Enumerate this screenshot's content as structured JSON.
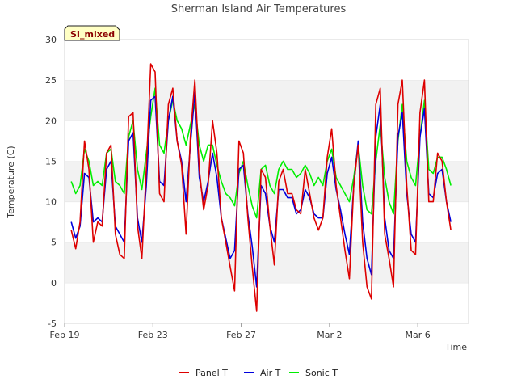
{
  "chart_data": {
    "type": "line",
    "title": "Sherman Island Air Temperatures",
    "badge": "SI_mixed",
    "xlabel": "Time",
    "ylabel": "Temperature (C)",
    "ylim": [
      -5,
      30
    ],
    "xlim": [
      0,
      18.3
    ],
    "yticks": [
      -5,
      0,
      5,
      10,
      15,
      20,
      25,
      30
    ],
    "xticks": [
      {
        "label": "Feb 19",
        "day": 0
      },
      {
        "label": "Feb 23",
        "day": 4
      },
      {
        "label": "Feb 27",
        "day": 8
      },
      {
        "label": "Mar 2",
        "day": 12
      },
      {
        "label": "Mar 6",
        "day": 16
      }
    ],
    "grid": "horizontal bands",
    "legend_position": "bottom",
    "series": [
      {
        "name": "Panel T",
        "color": "#dd0000",
        "points": [
          [
            0.3,
            6.5
          ],
          [
            0.5,
            4.2
          ],
          [
            0.7,
            7.5
          ],
          [
            0.9,
            17.5
          ],
          [
            1.1,
            14
          ],
          [
            1.3,
            5
          ],
          [
            1.5,
            7.5
          ],
          [
            1.7,
            7
          ],
          [
            1.9,
            16
          ],
          [
            2.1,
            17
          ],
          [
            2.3,
            6
          ],
          [
            2.5,
            3.5
          ],
          [
            2.7,
            3
          ],
          [
            2.9,
            20.5
          ],
          [
            3.1,
            21
          ],
          [
            3.3,
            7
          ],
          [
            3.5,
            3
          ],
          [
            3.7,
            14
          ],
          [
            3.9,
            27
          ],
          [
            4.1,
            26
          ],
          [
            4.3,
            11
          ],
          [
            4.5,
            10
          ],
          [
            4.7,
            22
          ],
          [
            4.9,
            24
          ],
          [
            5.1,
            17.5
          ],
          [
            5.3,
            14.5
          ],
          [
            5.5,
            6
          ],
          [
            5.7,
            18
          ],
          [
            5.9,
            25
          ],
          [
            6.1,
            14
          ],
          [
            6.3,
            9
          ],
          [
            6.5,
            12
          ],
          [
            6.7,
            20
          ],
          [
            6.9,
            16
          ],
          [
            7.1,
            8
          ],
          [
            7.3,
            5
          ],
          [
            7.5,
            2
          ],
          [
            7.7,
            -1
          ],
          [
            7.9,
            17.5
          ],
          [
            8.1,
            16
          ],
          [
            8.3,
            8
          ],
          [
            8.5,
            2
          ],
          [
            8.7,
            -3.5
          ],
          [
            8.9,
            14
          ],
          [
            9.1,
            13
          ],
          [
            9.3,
            7
          ],
          [
            9.5,
            2.2
          ],
          [
            9.7,
            12.5
          ],
          [
            9.9,
            14
          ],
          [
            10.1,
            11
          ],
          [
            10.3,
            11
          ],
          [
            10.5,
            9
          ],
          [
            10.7,
            8.5
          ],
          [
            10.9,
            14
          ],
          [
            11.1,
            11
          ],
          [
            11.3,
            8
          ],
          [
            11.5,
            6.5
          ],
          [
            11.7,
            8
          ],
          [
            11.9,
            15.5
          ],
          [
            12.1,
            19
          ],
          [
            12.3,
            12
          ],
          [
            12.5,
            8
          ],
          [
            12.7,
            4
          ],
          [
            12.9,
            0.5
          ],
          [
            13.1,
            12
          ],
          [
            13.3,
            17
          ],
          [
            13.5,
            5
          ],
          [
            13.7,
            -0.5
          ],
          [
            13.9,
            -2
          ],
          [
            14.1,
            22
          ],
          [
            14.3,
            24
          ],
          [
            14.5,
            6
          ],
          [
            14.7,
            3
          ],
          [
            14.9,
            -0.5
          ],
          [
            15.1,
            22
          ],
          [
            15.3,
            25
          ],
          [
            15.5,
            12
          ],
          [
            15.7,
            4
          ],
          [
            15.9,
            3.5
          ],
          [
            16.1,
            21
          ],
          [
            16.3,
            25
          ],
          [
            16.5,
            10
          ],
          [
            16.7,
            10
          ],
          [
            16.9,
            16
          ],
          [
            17.1,
            15
          ],
          [
            17.3,
            10
          ],
          [
            17.5,
            6.5
          ]
        ]
      },
      {
        "name": "Air T",
        "color": "#0000dd",
        "points": [
          [
            0.3,
            7.5
          ],
          [
            0.5,
            5.5
          ],
          [
            0.7,
            7
          ],
          [
            0.9,
            13.5
          ],
          [
            1.1,
            13
          ],
          [
            1.3,
            7.5
          ],
          [
            1.5,
            8
          ],
          [
            1.7,
            7.5
          ],
          [
            1.9,
            14
          ],
          [
            2.1,
            15
          ],
          [
            2.3,
            7
          ],
          [
            2.5,
            6
          ],
          [
            2.7,
            5
          ],
          [
            2.9,
            17.5
          ],
          [
            3.1,
            18.5
          ],
          [
            3.3,
            8
          ],
          [
            3.5,
            5
          ],
          [
            3.7,
            12
          ],
          [
            3.9,
            22.5
          ],
          [
            4.1,
            23
          ],
          [
            4.3,
            12.5
          ],
          [
            4.5,
            12
          ],
          [
            4.7,
            20
          ],
          [
            4.9,
            23
          ],
          [
            5.1,
            17.5
          ],
          [
            5.3,
            15
          ],
          [
            5.5,
            10
          ],
          [
            5.7,
            17
          ],
          [
            5.9,
            23.5
          ],
          [
            6.1,
            13
          ],
          [
            6.3,
            10
          ],
          [
            6.5,
            12.5
          ],
          [
            6.7,
            16
          ],
          [
            6.9,
            13
          ],
          [
            7.1,
            8
          ],
          [
            7.3,
            5.5
          ],
          [
            7.5,
            3
          ],
          [
            7.7,
            4
          ],
          [
            7.9,
            14
          ],
          [
            8.1,
            14.5
          ],
          [
            8.3,
            8.5
          ],
          [
            8.5,
            4.5
          ],
          [
            8.7,
            -0.5
          ],
          [
            8.9,
            12
          ],
          [
            9.1,
            11
          ],
          [
            9.3,
            7
          ],
          [
            9.5,
            5
          ],
          [
            9.7,
            11.5
          ],
          [
            9.9,
            11.5
          ],
          [
            10.1,
            10.5
          ],
          [
            10.3,
            10.5
          ],
          [
            10.5,
            8.5
          ],
          [
            10.7,
            9
          ],
          [
            10.9,
            11.5
          ],
          [
            11.1,
            10.5
          ],
          [
            11.3,
            8.5
          ],
          [
            11.5,
            8
          ],
          [
            11.7,
            8
          ],
          [
            11.9,
            13.5
          ],
          [
            12.1,
            15.5
          ],
          [
            12.3,
            11.5
          ],
          [
            12.5,
            9
          ],
          [
            12.7,
            6
          ],
          [
            12.9,
            3.5
          ],
          [
            13.1,
            12
          ],
          [
            13.3,
            17.5
          ],
          [
            13.5,
            7.5
          ],
          [
            13.7,
            3
          ],
          [
            13.9,
            1
          ],
          [
            14.1,
            18
          ],
          [
            14.3,
            22
          ],
          [
            14.5,
            8
          ],
          [
            14.7,
            4
          ],
          [
            14.9,
            3
          ],
          [
            15.1,
            18
          ],
          [
            15.3,
            21
          ],
          [
            15.5,
            11
          ],
          [
            15.7,
            6
          ],
          [
            15.9,
            5
          ],
          [
            16.1,
            18
          ],
          [
            16.3,
            21.5
          ],
          [
            16.5,
            11
          ],
          [
            16.7,
            10.5
          ],
          [
            16.9,
            13.5
          ],
          [
            17.1,
            14
          ],
          [
            17.3,
            10
          ],
          [
            17.5,
            7.5
          ]
        ]
      },
      {
        "name": "Sonic T",
        "color": "#00ee00",
        "points": [
          [
            0.3,
            12.5
          ],
          [
            0.5,
            11
          ],
          [
            0.7,
            12
          ],
          [
            0.9,
            16.5
          ],
          [
            1.1,
            15
          ],
          [
            1.3,
            12
          ],
          [
            1.5,
            12.5
          ],
          [
            1.7,
            12
          ],
          [
            1.9,
            16
          ],
          [
            2.1,
            16.5
          ],
          [
            2.3,
            12.5
          ],
          [
            2.5,
            12
          ],
          [
            2.7,
            11
          ],
          [
            2.9,
            18
          ],
          [
            3.1,
            20
          ],
          [
            3.3,
            14
          ],
          [
            3.5,
            11.5
          ],
          [
            3.7,
            16
          ],
          [
            3.9,
            20.5
          ],
          [
            4.1,
            24
          ],
          [
            4.3,
            17
          ],
          [
            4.5,
            16
          ],
          [
            4.7,
            20
          ],
          [
            4.9,
            22.5
          ],
          [
            5.1,
            20
          ],
          [
            5.3,
            19
          ],
          [
            5.5,
            17
          ],
          [
            5.7,
            19.5
          ],
          [
            5.9,
            22
          ],
          [
            6.1,
            17
          ],
          [
            6.3,
            15
          ],
          [
            6.5,
            17
          ],
          [
            6.7,
            17
          ],
          [
            6.9,
            14.5
          ],
          [
            7.1,
            12.5
          ],
          [
            7.3,
            11
          ],
          [
            7.5,
            10.5
          ],
          [
            7.7,
            9.5
          ],
          [
            7.9,
            13.5
          ],
          [
            8.1,
            15
          ],
          [
            8.3,
            12
          ],
          [
            8.5,
            9.5
          ],
          [
            8.7,
            8
          ],
          [
            8.9,
            14
          ],
          [
            9.1,
            14.5
          ],
          [
            9.3,
            12
          ],
          [
            9.5,
            11
          ],
          [
            9.7,
            14
          ],
          [
            9.9,
            15
          ],
          [
            10.1,
            14
          ],
          [
            10.3,
            14
          ],
          [
            10.5,
            13
          ],
          [
            10.7,
            13.5
          ],
          [
            10.9,
            14.5
          ],
          [
            11.1,
            13.5
          ],
          [
            11.3,
            12
          ],
          [
            11.5,
            13
          ],
          [
            11.7,
            12
          ],
          [
            11.9,
            15
          ],
          [
            12.1,
            16.5
          ],
          [
            12.3,
            13
          ],
          [
            12.5,
            12
          ],
          [
            12.7,
            11
          ],
          [
            12.9,
            10
          ],
          [
            13.1,
            13
          ],
          [
            13.3,
            17
          ],
          [
            13.5,
            12
          ],
          [
            13.7,
            9
          ],
          [
            13.9,
            8.5
          ],
          [
            14.1,
            15
          ],
          [
            14.3,
            19.5
          ],
          [
            14.5,
            13
          ],
          [
            14.7,
            10
          ],
          [
            14.9,
            8.5
          ],
          [
            15.1,
            17.5
          ],
          [
            15.3,
            22
          ],
          [
            15.5,
            15
          ],
          [
            15.7,
            13
          ],
          [
            15.9,
            12
          ],
          [
            16.1,
            18
          ],
          [
            16.3,
            22.5
          ],
          [
            16.5,
            14
          ],
          [
            16.7,
            13.5
          ],
          [
            16.9,
            15.5
          ],
          [
            17.1,
            15.5
          ],
          [
            17.3,
            14
          ],
          [
            17.5,
            12
          ]
        ]
      }
    ]
  }
}
